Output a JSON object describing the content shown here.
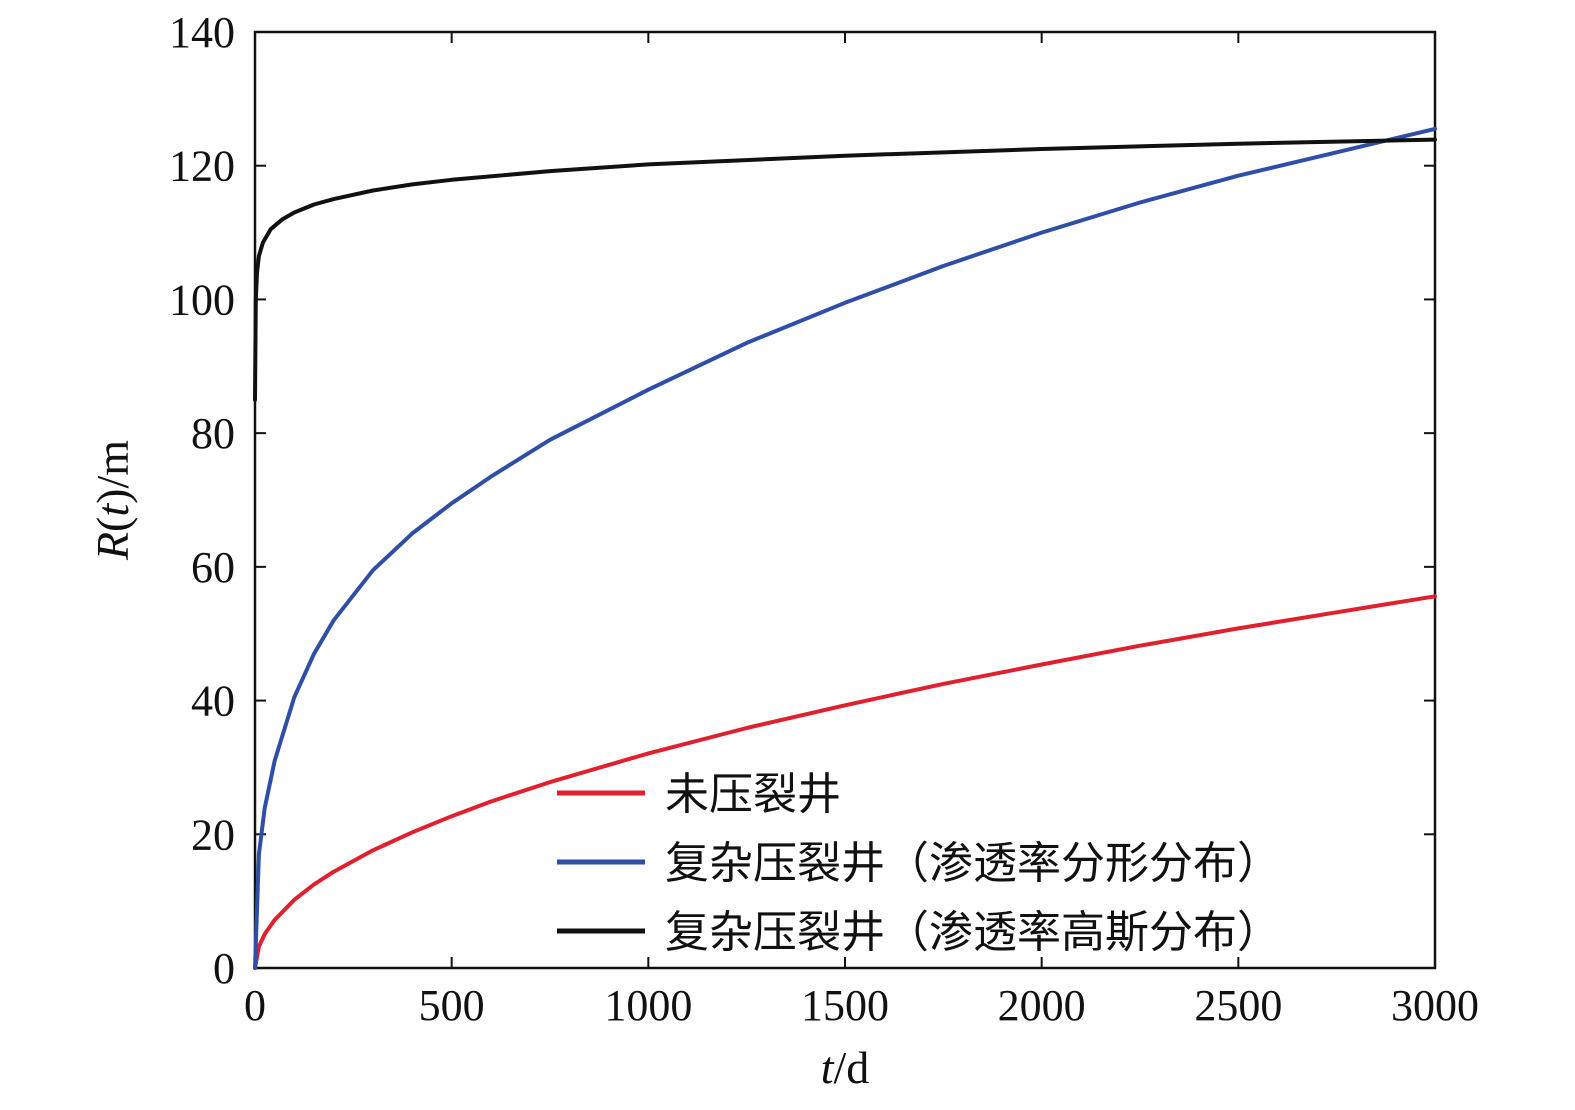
{
  "chart_data": {
    "type": "line",
    "xlabel": {
      "italic": "t",
      "rest": "/d"
    },
    "ylabel": {
      "italic": "R",
      "rest_open": "(",
      "italic2": "t",
      "rest_close": ")/m"
    },
    "xlim": [
      0,
      3000
    ],
    "ylim": [
      0,
      140
    ],
    "xticks": [
      0,
      500,
      1000,
      1500,
      2000,
      2500,
      3000
    ],
    "yticks": [
      0,
      20,
      40,
      60,
      80,
      100,
      120,
      140
    ],
    "grid": false,
    "legend_position": "bottom-right",
    "series": [
      {
        "name": "未压裂井",
        "color": "#e0202e",
        "x": [
          0,
          10,
          25,
          50,
          100,
          150,
          200,
          300,
          400,
          500,
          600,
          750,
          1000,
          1250,
          1500,
          1750,
          2000,
          2250,
          2500,
          2750,
          3000
        ],
        "y": [
          0,
          3.2,
          5.1,
          7.2,
          10.2,
          12.5,
          14.4,
          17.6,
          20.3,
          22.7,
          24.9,
          27.8,
          32.1,
          35.9,
          39.3,
          42.5,
          45.4,
          48.2,
          50.8,
          53.2,
          55.6
        ]
      },
      {
        "name": "复杂压裂井（渗透率分形分布）",
        "color": "#2e4ea8",
        "x": [
          0,
          10,
          25,
          50,
          100,
          150,
          200,
          300,
          400,
          500,
          600,
          750,
          1000,
          1250,
          1500,
          1750,
          2000,
          2250,
          2500,
          2750,
          3000
        ],
        "y": [
          0,
          17,
          24,
          31,
          40.5,
          47,
          52,
          59.5,
          65,
          69.5,
          73.5,
          79,
          86.5,
          93.5,
          99.5,
          105,
          110,
          114.5,
          118.5,
          122,
          125.5
        ]
      },
      {
        "name": "复杂压裂井（渗透率高斯分布）",
        "color": "#111111",
        "x": [
          0,
          2,
          5,
          10,
          20,
          40,
          70,
          100,
          150,
          200,
          300,
          400,
          500,
          750,
          1000,
          1500,
          2000,
          2500,
          3000
        ],
        "y": [
          85,
          100,
          104,
          106.5,
          108.5,
          110.5,
          112,
          113,
          114.2,
          115,
          116.3,
          117.2,
          117.9,
          119.2,
          120.2,
          121.5,
          122.5,
          123.3,
          123.9
        ]
      }
    ]
  }
}
